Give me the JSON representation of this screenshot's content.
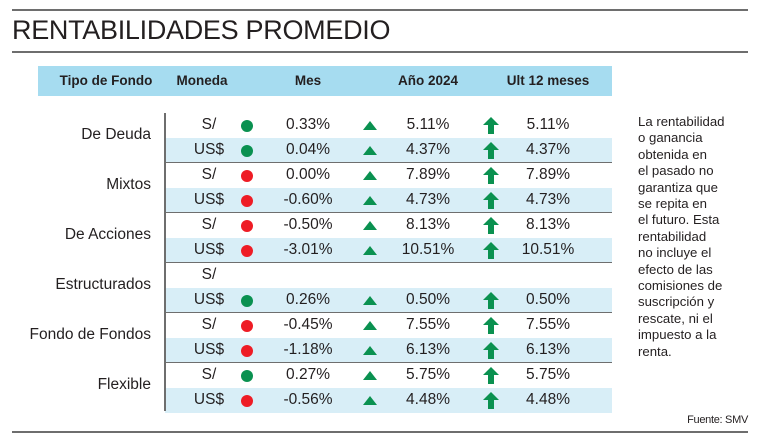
{
  "title": "RENTABILIDADES PROMEDIO",
  "header": {
    "tipo": "Tipo de Fondo",
    "moneda": "Moneda",
    "mes": "Mes",
    "anio": "Año 2024",
    "ult12": "Ult 12 meses"
  },
  "colors": {
    "header_bg": "#a6dcf0",
    "row_shade": "#d8eef7",
    "positive": "#0a9150",
    "negative": "#ee1c25"
  },
  "groups": [
    {
      "name": "De Deuda",
      "rows": [
        {
          "moneda": "S/",
          "indicator": "green",
          "mes": "0.33%",
          "anio_icon": "triangle-up",
          "anio": "5.11%",
          "ult12_icon": "arrow-up",
          "ult12": "5.11%"
        },
        {
          "moneda": "US$",
          "indicator": "green",
          "mes": "0.04%",
          "anio_icon": "triangle-up",
          "anio": "4.37%",
          "ult12_icon": "arrow-up",
          "ult12": "4.37%"
        }
      ]
    },
    {
      "name": "Mixtos",
      "rows": [
        {
          "moneda": "S/",
          "indicator": "red",
          "mes": "0.00%",
          "anio_icon": "triangle-up",
          "anio": "7.89%",
          "ult12_icon": "arrow-up",
          "ult12": "7.89%"
        },
        {
          "moneda": "US$",
          "indicator": "red",
          "mes": "-0.60%",
          "anio_icon": "triangle-up",
          "anio": "4.73%",
          "ult12_icon": "arrow-up",
          "ult12": "4.73%"
        }
      ]
    },
    {
      "name": "De Acciones",
      "rows": [
        {
          "moneda": "S/",
          "indicator": "red",
          "mes": "-0.50%",
          "anio_icon": "triangle-up",
          "anio": "8.13%",
          "ult12_icon": "arrow-up",
          "ult12": "8.13%"
        },
        {
          "moneda": "US$",
          "indicator": "red",
          "mes": "-3.01%",
          "anio_icon": "triangle-up",
          "anio": "10.51%",
          "ult12_icon": "arrow-up",
          "ult12": "10.51%"
        }
      ]
    },
    {
      "name": "Estructurados",
      "rows": [
        {
          "moneda": "S/",
          "indicator": null,
          "mes": null,
          "anio_icon": null,
          "anio": null,
          "ult12_icon": null,
          "ult12": null
        },
        {
          "moneda": "US$",
          "indicator": "green",
          "mes": "0.26%",
          "anio_icon": "triangle-up",
          "anio": "0.50%",
          "ult12_icon": "arrow-up",
          "ult12": "0.50%"
        }
      ]
    },
    {
      "name": "Fondo de Fondos",
      "rows": [
        {
          "moneda": "S/",
          "indicator": "red",
          "mes": "-0.45%",
          "anio_icon": "triangle-up",
          "anio": "7.55%",
          "ult12_icon": "arrow-up",
          "ult12": "7.55%"
        },
        {
          "moneda": "US$",
          "indicator": "red",
          "mes": "-1.18%",
          "anio_icon": "triangle-up",
          "anio": "6.13%",
          "ult12_icon": "arrow-up",
          "ult12": "6.13%"
        }
      ]
    },
    {
      "name": "Flexible",
      "rows": [
        {
          "moneda": "S/",
          "indicator": "green",
          "mes": "0.27%",
          "anio_icon": "triangle-up",
          "anio": "5.75%",
          "ult12_icon": "arrow-up",
          "ult12": "5.75%"
        },
        {
          "moneda": "US$",
          "indicator": "red",
          "mes": "-0.56%",
          "anio_icon": "triangle-up",
          "anio": "4.48%",
          "ult12_icon": "arrow-up",
          "ult12": "4.48%"
        }
      ]
    }
  ],
  "note": "La rentabilidad o ganancia obtenida en el pasado no garantiza que se repita en el futuro. Esta rentabilidad no incluye el efecto de las comisiones de suscripción y rescate, ni el impuesto a la renta.",
  "note_lines": [
    "La rentabilidad",
    "o ganancia",
    "obtenida en",
    "el pasado no",
    "garantiza que",
    "se repita en",
    "el futuro. Esta",
    "rentabilidad",
    "no incluye el",
    "efecto de las",
    "comisiones de",
    "suscripción y",
    "rescate, ni el",
    "impuesto a la",
    "renta."
  ],
  "source": "Fuente: SMV"
}
